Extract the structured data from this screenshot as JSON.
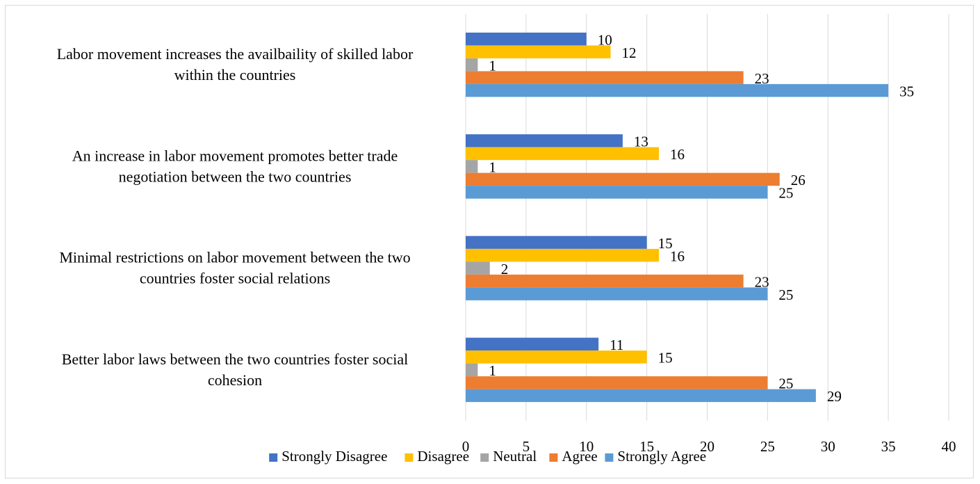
{
  "chart_data": {
    "type": "bar",
    "orientation": "horizontal",
    "title": "",
    "xlabel": "",
    "ylabel": "",
    "xlim": [
      0,
      40
    ],
    "x_ticks": [
      0,
      5,
      10,
      15,
      20,
      25,
      30,
      35,
      40
    ],
    "grid": "vertical gridlines",
    "legend_position": "bottom",
    "categories": [
      [
        "Labor movement increases the availbaility of skilled labor",
        "within the countries"
      ],
      [
        "An increase in labor movement promotes better trade",
        "negotiation between the two countries"
      ],
      [
        "Minimal restrictions on labor movement between the two",
        "countries foster social relations"
      ],
      [
        "Better labor laws between the two countries foster social",
        "cohesion"
      ]
    ],
    "series": [
      {
        "name": "Strongly Disagree",
        "color": "#4472C4",
        "values": [
          10,
          13,
          15,
          11
        ]
      },
      {
        "name": "Disagree",
        "color": "#FFC000",
        "values": [
          12,
          16,
          16,
          15
        ]
      },
      {
        "name": "Neutral",
        "color": "#A5A5A5",
        "values": [
          1,
          1,
          2,
          1
        ]
      },
      {
        "name": "Agree",
        "color": "#ED7D31",
        "values": [
          23,
          26,
          23,
          25
        ]
      },
      {
        "name": "Strongly Agree",
        "color": "#5B9BD5",
        "values": [
          35,
          25,
          25,
          29
        ]
      }
    ]
  }
}
